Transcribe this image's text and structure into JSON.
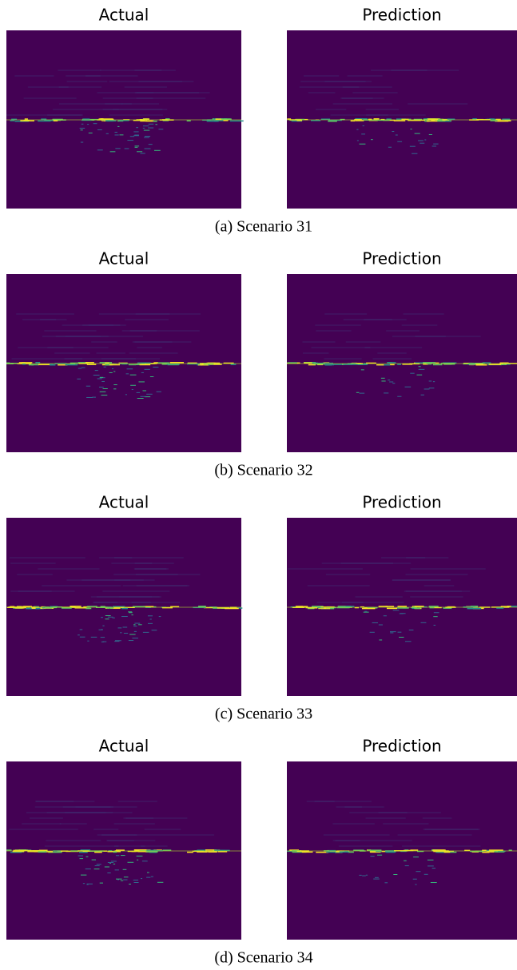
{
  "figures": [
    {
      "panels": [
        {
          "title": "Actual"
        },
        {
          "title": "Prediction"
        }
      ],
      "caption": "(a) Scenario 31"
    },
    {
      "panels": [
        {
          "title": "Actual"
        },
        {
          "title": "Prediction"
        }
      ],
      "caption": "(b) Scenario 32"
    },
    {
      "panels": [
        {
          "title": "Actual"
        },
        {
          "title": "Prediction"
        }
      ],
      "caption": "(c) Scenario 33"
    },
    {
      "panels": [
        {
          "title": "Actual"
        },
        {
          "title": "Prediction"
        }
      ],
      "caption": "(d) Scenario 34"
    }
  ]
}
